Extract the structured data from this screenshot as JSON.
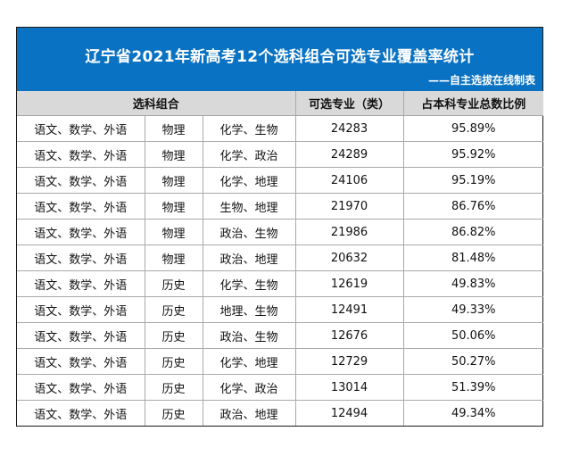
{
  "header": {
    "title": "辽宁省2021年新高考12个选科组合可选专业覆盖率统计",
    "subtitle": "——自主选拔在线制表",
    "background_color": "#0a72c3"
  },
  "table": {
    "columns": [
      "选科组合",
      "可选专业（类）",
      "占本科专业总数比例"
    ],
    "rows": [
      {
        "base": "语文、数学、外语",
        "first": "物理",
        "second": "化学、生物",
        "count": "24283",
        "ratio": "95.89%"
      },
      {
        "base": "语文、数学、外语",
        "first": "物理",
        "second": "化学、政治",
        "count": "24289",
        "ratio": "95.92%"
      },
      {
        "base": "语文、数学、外语",
        "first": "物理",
        "second": "化学、地理",
        "count": "24106",
        "ratio": "95.19%"
      },
      {
        "base": "语文、数学、外语",
        "first": "物理",
        "second": "生物、地理",
        "count": "21970",
        "ratio": "86.76%"
      },
      {
        "base": "语文、数学、外语",
        "first": "物理",
        "second": "政治、生物",
        "count": "21986",
        "ratio": "86.82%"
      },
      {
        "base": "语文、数学、外语",
        "first": "物理",
        "second": "政治、地理",
        "count": "20632",
        "ratio": "81.48%"
      },
      {
        "base": "语文、数学、外语",
        "first": "历史",
        "second": "化学、生物",
        "count": "12619",
        "ratio": "49.83%"
      },
      {
        "base": "语文、数学、外语",
        "first": "历史",
        "second": "地理、生物",
        "count": "12491",
        "ratio": "49.33%"
      },
      {
        "base": "语文、数学、外语",
        "first": "历史",
        "second": "政治、生物",
        "count": "12676",
        "ratio": "50.06%"
      },
      {
        "base": "语文、数学、外语",
        "first": "历史",
        "second": "化学、地理",
        "count": "12729",
        "ratio": "50.27%"
      },
      {
        "base": "语文、数学、外语",
        "first": "历史",
        "second": "化学、政治",
        "count": "13014",
        "ratio": "51.39%"
      },
      {
        "base": "语文、数学、外语",
        "first": "历史",
        "second": "政治、地理",
        "count": "12494",
        "ratio": "49.34%"
      }
    ]
  }
}
